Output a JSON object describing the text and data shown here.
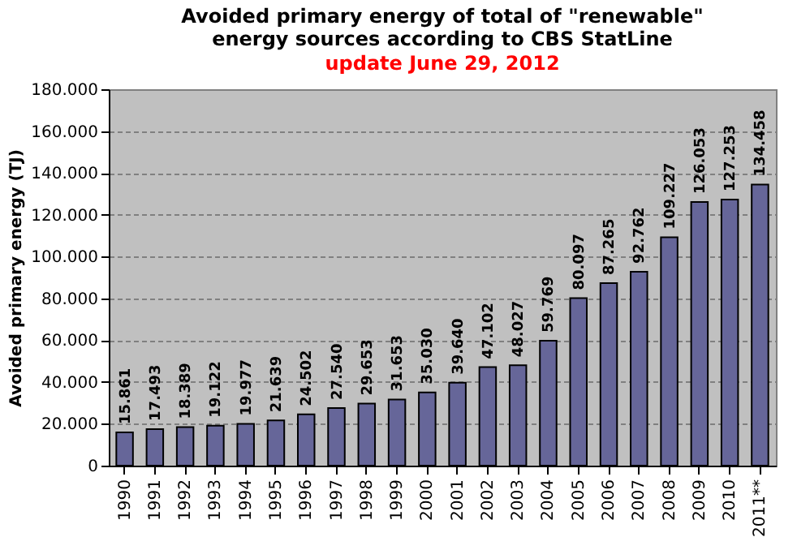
{
  "chart_data": {
    "type": "bar",
    "title": "Avoided primary energy of total of \"renewable\" energy sources according to CBS StatLine",
    "subtitle": "update June 29, 2012",
    "ylabel": "Avoided primary energy (TJ)",
    "categories": [
      "1990",
      "1991",
      "1992",
      "1993",
      "1994",
      "1995",
      "1996",
      "1997",
      "1998",
      "1999",
      "2000",
      "2001",
      "2002",
      "2003",
      "2004",
      "2005",
      "2006",
      "2007",
      "2008",
      "2009",
      "2010",
      "2011**"
    ],
    "series": [
      {
        "color": "#666699",
        "values": [
          15861,
          17493,
          18389,
          19122,
          19977,
          21639,
          24502,
          27540,
          29653,
          31653,
          35030,
          39640,
          47102,
          48027,
          59769,
          80097,
          87265,
          92762,
          109227,
          126053,
          127253,
          134458
        ]
      }
    ],
    "value_labels": [
      "15.861",
      "17.493",
      "18.389",
      "19.122",
      "19.977",
      "21.639",
      "24.502",
      "27.540",
      "29.653",
      "31.653",
      "35.030",
      "39.640",
      "47.102",
      "48.027",
      "59.769",
      "80.097",
      "87.265",
      "92.762",
      "109.227",
      "126.053",
      "127.253",
      "134.458"
    ],
    "ylim": [
      0,
      180000
    ],
    "yticks": [
      {
        "value": 0,
        "label": "0"
      },
      {
        "value": 20000,
        "label": "20.000"
      },
      {
        "value": 40000,
        "label": "40.000"
      },
      {
        "value": 60000,
        "label": "60.000"
      },
      {
        "value": 80000,
        "label": "80.000"
      },
      {
        "value": 100000,
        "label": "100.000"
      },
      {
        "value": 120000,
        "label": "120.000"
      },
      {
        "value": 140000,
        "label": "140.000"
      },
      {
        "value": 160000,
        "label": "160.000"
      },
      {
        "value": 180000,
        "label": "180.000"
      }
    ],
    "grid": "y"
  }
}
